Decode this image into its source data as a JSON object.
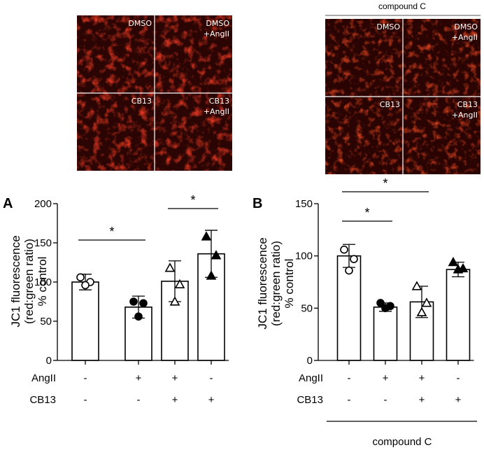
{
  "micrographs": {
    "left": {
      "tiles": [
        {
          "lines": [
            "DMSO"
          ]
        },
        {
          "lines": [
            "DMSO",
            "+AngII"
          ]
        },
        {
          "lines": [
            "CB13"
          ]
        },
        {
          "lines": [
            "CB13",
            "+AngII"
          ]
        }
      ]
    },
    "right": {
      "header": "compound C",
      "tiles": [
        {
          "lines": [
            "DMSO"
          ]
        },
        {
          "lines": [
            "DMSO",
            "+AngII"
          ]
        },
        {
          "lines": [
            "CB13"
          ]
        },
        {
          "lines": [
            "CB13",
            "+AngII"
          ]
        }
      ]
    }
  },
  "chart_data": [
    {
      "panel": "A",
      "type": "bar",
      "ylabel_lines": [
        "JC1 fluorescence",
        "(red:green ratio)",
        "% control"
      ],
      "ylim": [
        0,
        200
      ],
      "yticks": [
        "0",
        "50",
        "100",
        "150",
        "200"
      ],
      "tick_values": [
        0,
        50,
        100,
        150,
        200
      ],
      "values": [
        100,
        68,
        101,
        136
      ],
      "errors": [
        10,
        14,
        26,
        30
      ],
      "markers": [
        "open-circle",
        "filled-circle",
        "open-triangle",
        "filled-triangle"
      ],
      "points": [
        [
          106,
          100,
          96
        ],
        [
          75,
          73,
          56
        ],
        [
          118,
          97,
          75
        ],
        [
          158,
          134,
          108
        ]
      ],
      "rows": [
        {
          "label": "AngII",
          "values": [
            "-",
            "+",
            "+",
            "-"
          ]
        },
        {
          "label": "CB13",
          "values": [
            "-",
            "-",
            "+",
            "+"
          ]
        }
      ],
      "significance": [
        {
          "from": 0,
          "to": 1,
          "label": "*"
        },
        {
          "from": 2,
          "to": 3,
          "label": "*"
        }
      ]
    },
    {
      "panel": "B",
      "type": "bar",
      "ylabel_lines": [
        "JC1 fluorescence",
        "(red:green ratio)",
        "% control"
      ],
      "ylim": [
        0,
        150
      ],
      "yticks": [
        "0",
        "50",
        "100",
        "150"
      ],
      "tick_values": [
        0,
        50,
        100,
        150
      ],
      "values": [
        100,
        51,
        56,
        87
      ],
      "errors": [
        11,
        4,
        15,
        7
      ],
      "markers": [
        "open-circle",
        "filled-circle",
        "open-triangle",
        "filled-triangle"
      ],
      "points": [
        [
          106,
          97,
          86
        ],
        [
          55,
          52,
          50
        ],
        [
          71,
          55,
          46
        ],
        [
          94,
          88,
          87
        ]
      ],
      "rows": [
        {
          "label": "AngII",
          "values": [
            "-",
            "+",
            "+",
            "-"
          ]
        },
        {
          "label": "CB13",
          "values": [
            "-",
            "-",
            "+",
            "+"
          ]
        }
      ],
      "significance": [
        {
          "from": 0,
          "to": 1,
          "label": "*"
        },
        {
          "from": 0,
          "to": 2,
          "label": "*"
        }
      ],
      "footer": "compound C"
    }
  ]
}
